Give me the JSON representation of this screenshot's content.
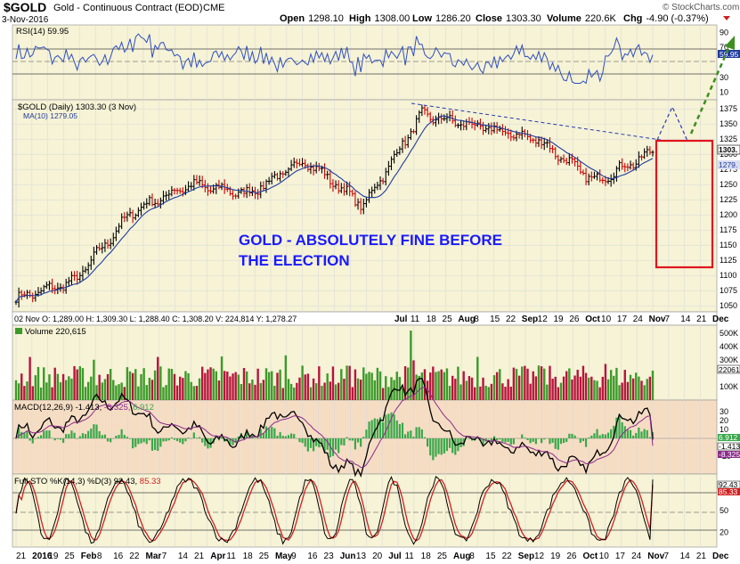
{
  "header": {
    "symbol": "$GOLD",
    "name": "Gold - Continuous Contract (EOD)",
    "exchange": "CME",
    "date": "3-Nov-2016",
    "open_label": "Open",
    "open": "1298.10",
    "high_label": "High",
    "high": "1308.00",
    "low_label": "Low",
    "low": "1286.20",
    "close_label": "Close",
    "close": "1303.30",
    "volume_label": "Volume",
    "volume": "220.6K",
    "chg_label": "Chg",
    "chg": "-4.90 (-0.37%)",
    "watermark": "© StockCharts.com"
  },
  "rsi": {
    "label": "RSI(14) 59.95",
    "ticks": [
      "90",
      "70",
      "30",
      "10"
    ],
    "value_tag": "59.95",
    "upper": 70,
    "lower": 30
  },
  "price": {
    "label": "$GOLD (Daily) 1303.30 (3 Nov)",
    "ma_label": "MA(10) 1279.05",
    "ticks": [
      "1375",
      "1350",
      "1325",
      "1300",
      "1275",
      "1250",
      "1225",
      "1200",
      "1175",
      "1150",
      "1125",
      "1100",
      "1075",
      "1050"
    ],
    "last_tag": "1303.",
    "ma_tag": "1279.",
    "annotation_line1": "GOLD - ABSOLUTELY FINE BEFORE",
    "annotation_line2": "THE ELECTION",
    "ohlc_info": "02 Nov O: 1,289.00    H: 1,309.30    L: 1,288.40    C: 1,308.20    V: 224,814    Y: 1,278.27"
  },
  "volume": {
    "label": "Volume 220,615",
    "ticks": [
      "500K",
      "400K",
      "300K",
      "100K"
    ],
    "value_tag": "220615"
  },
  "macd": {
    "label_main": "MACD(12,26,9) -1.413,",
    "label_signal": "-8.325,",
    "label_hist": "6.912",
    "ticks": [
      "30",
      "20",
      "10",
      "-20"
    ],
    "tags": [
      "6.912",
      "-1.413",
      "-8.325"
    ]
  },
  "sto": {
    "label_main": "Full STO %K(14,3) %D(3) 92.43,",
    "label_d": "85.33",
    "ticks": [
      "50",
      "20"
    ],
    "tags": [
      "92.43",
      "85.33"
    ]
  },
  "xaxis_top": [
    {
      "t": "Jul",
      "b": true
    },
    {
      "t": "11"
    },
    {
      "t": "18"
    },
    {
      "t": "25"
    },
    {
      "t": "Aug",
      "b": true
    },
    {
      "t": "8"
    },
    {
      "t": "15"
    },
    {
      "t": "22"
    },
    {
      "t": "Sep",
      "b": true
    },
    {
      "t": "12"
    },
    {
      "t": "19"
    },
    {
      "t": "26"
    },
    {
      "t": "Oct",
      "b": true
    },
    {
      "t": "10"
    },
    {
      "t": "17"
    },
    {
      "t": "24"
    },
    {
      "t": "Nov",
      "b": true
    },
    {
      "t": "7"
    },
    {
      "t": "14"
    },
    {
      "t": "21"
    },
    {
      "t": "Dec",
      "b": true
    }
  ],
  "xaxis_bottom": [
    {
      "t": "21"
    },
    {
      "t": "2016",
      "b": true
    },
    {
      "t": "19"
    },
    {
      "t": "25"
    },
    {
      "t": "Feb",
      "b": true
    },
    {
      "t": "8"
    },
    {
      "t": "16"
    },
    {
      "t": "22"
    },
    {
      "t": "Mar",
      "b": true
    },
    {
      "t": "7"
    },
    {
      "t": "14"
    },
    {
      "t": "21"
    },
    {
      "t": "Apr",
      "b": true
    },
    {
      "t": "11"
    },
    {
      "t": "18"
    },
    {
      "t": "25"
    },
    {
      "t": "May",
      "b": true
    },
    {
      "t": "9"
    },
    {
      "t": "16"
    },
    {
      "t": "23"
    },
    {
      "t": "Jun",
      "b": true
    },
    {
      "t": "13"
    },
    {
      "t": "20"
    },
    {
      "t": "Jul",
      "b": true
    },
    {
      "t": "11"
    },
    {
      "t": "18"
    },
    {
      "t": "25"
    },
    {
      "t": "Aug",
      "b": true
    },
    {
      "t": "8"
    },
    {
      "t": "15"
    },
    {
      "t": "22"
    },
    {
      "t": "Sep",
      "b": true
    },
    {
      "t": "12"
    },
    {
      "t": "19"
    },
    {
      "t": "26"
    },
    {
      "t": "Oct",
      "b": true
    },
    {
      "t": "10"
    },
    {
      "t": "17"
    },
    {
      "t": "24"
    },
    {
      "t": "Nov",
      "b": true
    },
    {
      "t": "7"
    },
    {
      "t": "14"
    },
    {
      "t": "21"
    },
    {
      "t": "Dec",
      "b": true
    }
  ],
  "colors": {
    "panel_bg": "#f6f3d6",
    "macd_bg": "#f5ddc4",
    "up": "#000000",
    "down": "#cc0000",
    "ma": "#1f3c9e",
    "rsi": "#2f4fc0",
    "annotation": "#1a1aff",
    "box": "#e0141e",
    "projection": "#3e8e1f",
    "vol_up": "#3c9a2a",
    "vol_down": "#b8143c",
    "hist": "#39a84a"
  },
  "chart_data": {
    "type": "line",
    "title": "$GOLD Gold - Continuous Contract (EOD) CME",
    "x": [
      "Dec 2015",
      "Jan 2016",
      "Feb 2016",
      "Mar 2016",
      "Apr 2016",
      "May 2016",
      "Jun 2016",
      "Jul 2016",
      "Aug 2016",
      "Sep 2016",
      "Oct 2016",
      "Nov 2016"
    ],
    "series": [
      {
        "name": "$GOLD (Daily)",
        "values": [
          1062,
          1090,
          1205,
          1250,
          1235,
          1290,
          1215,
          1365,
          1345,
          1325,
          1255,
          1303.3
        ]
      },
      {
        "name": "MA(10)",
        "values": [
          1065,
          1085,
          1185,
          1245,
          1235,
          1285,
          1225,
          1345,
          1345,
          1325,
          1262,
          1279.05
        ]
      }
    ],
    "ylim": [
      1040,
      1390
    ],
    "ohlc_last": {
      "open": 1298.1,
      "high": 1308.0,
      "low": 1286.2,
      "close": 1303.3
    },
    "rsi": 59.95,
    "volume": 220615,
    "macd": {
      "macd": -1.413,
      "signal": -8.325,
      "histogram": 6.912
    },
    "sto": {
      "k": 92.43,
      "d": 85.33
    }
  }
}
